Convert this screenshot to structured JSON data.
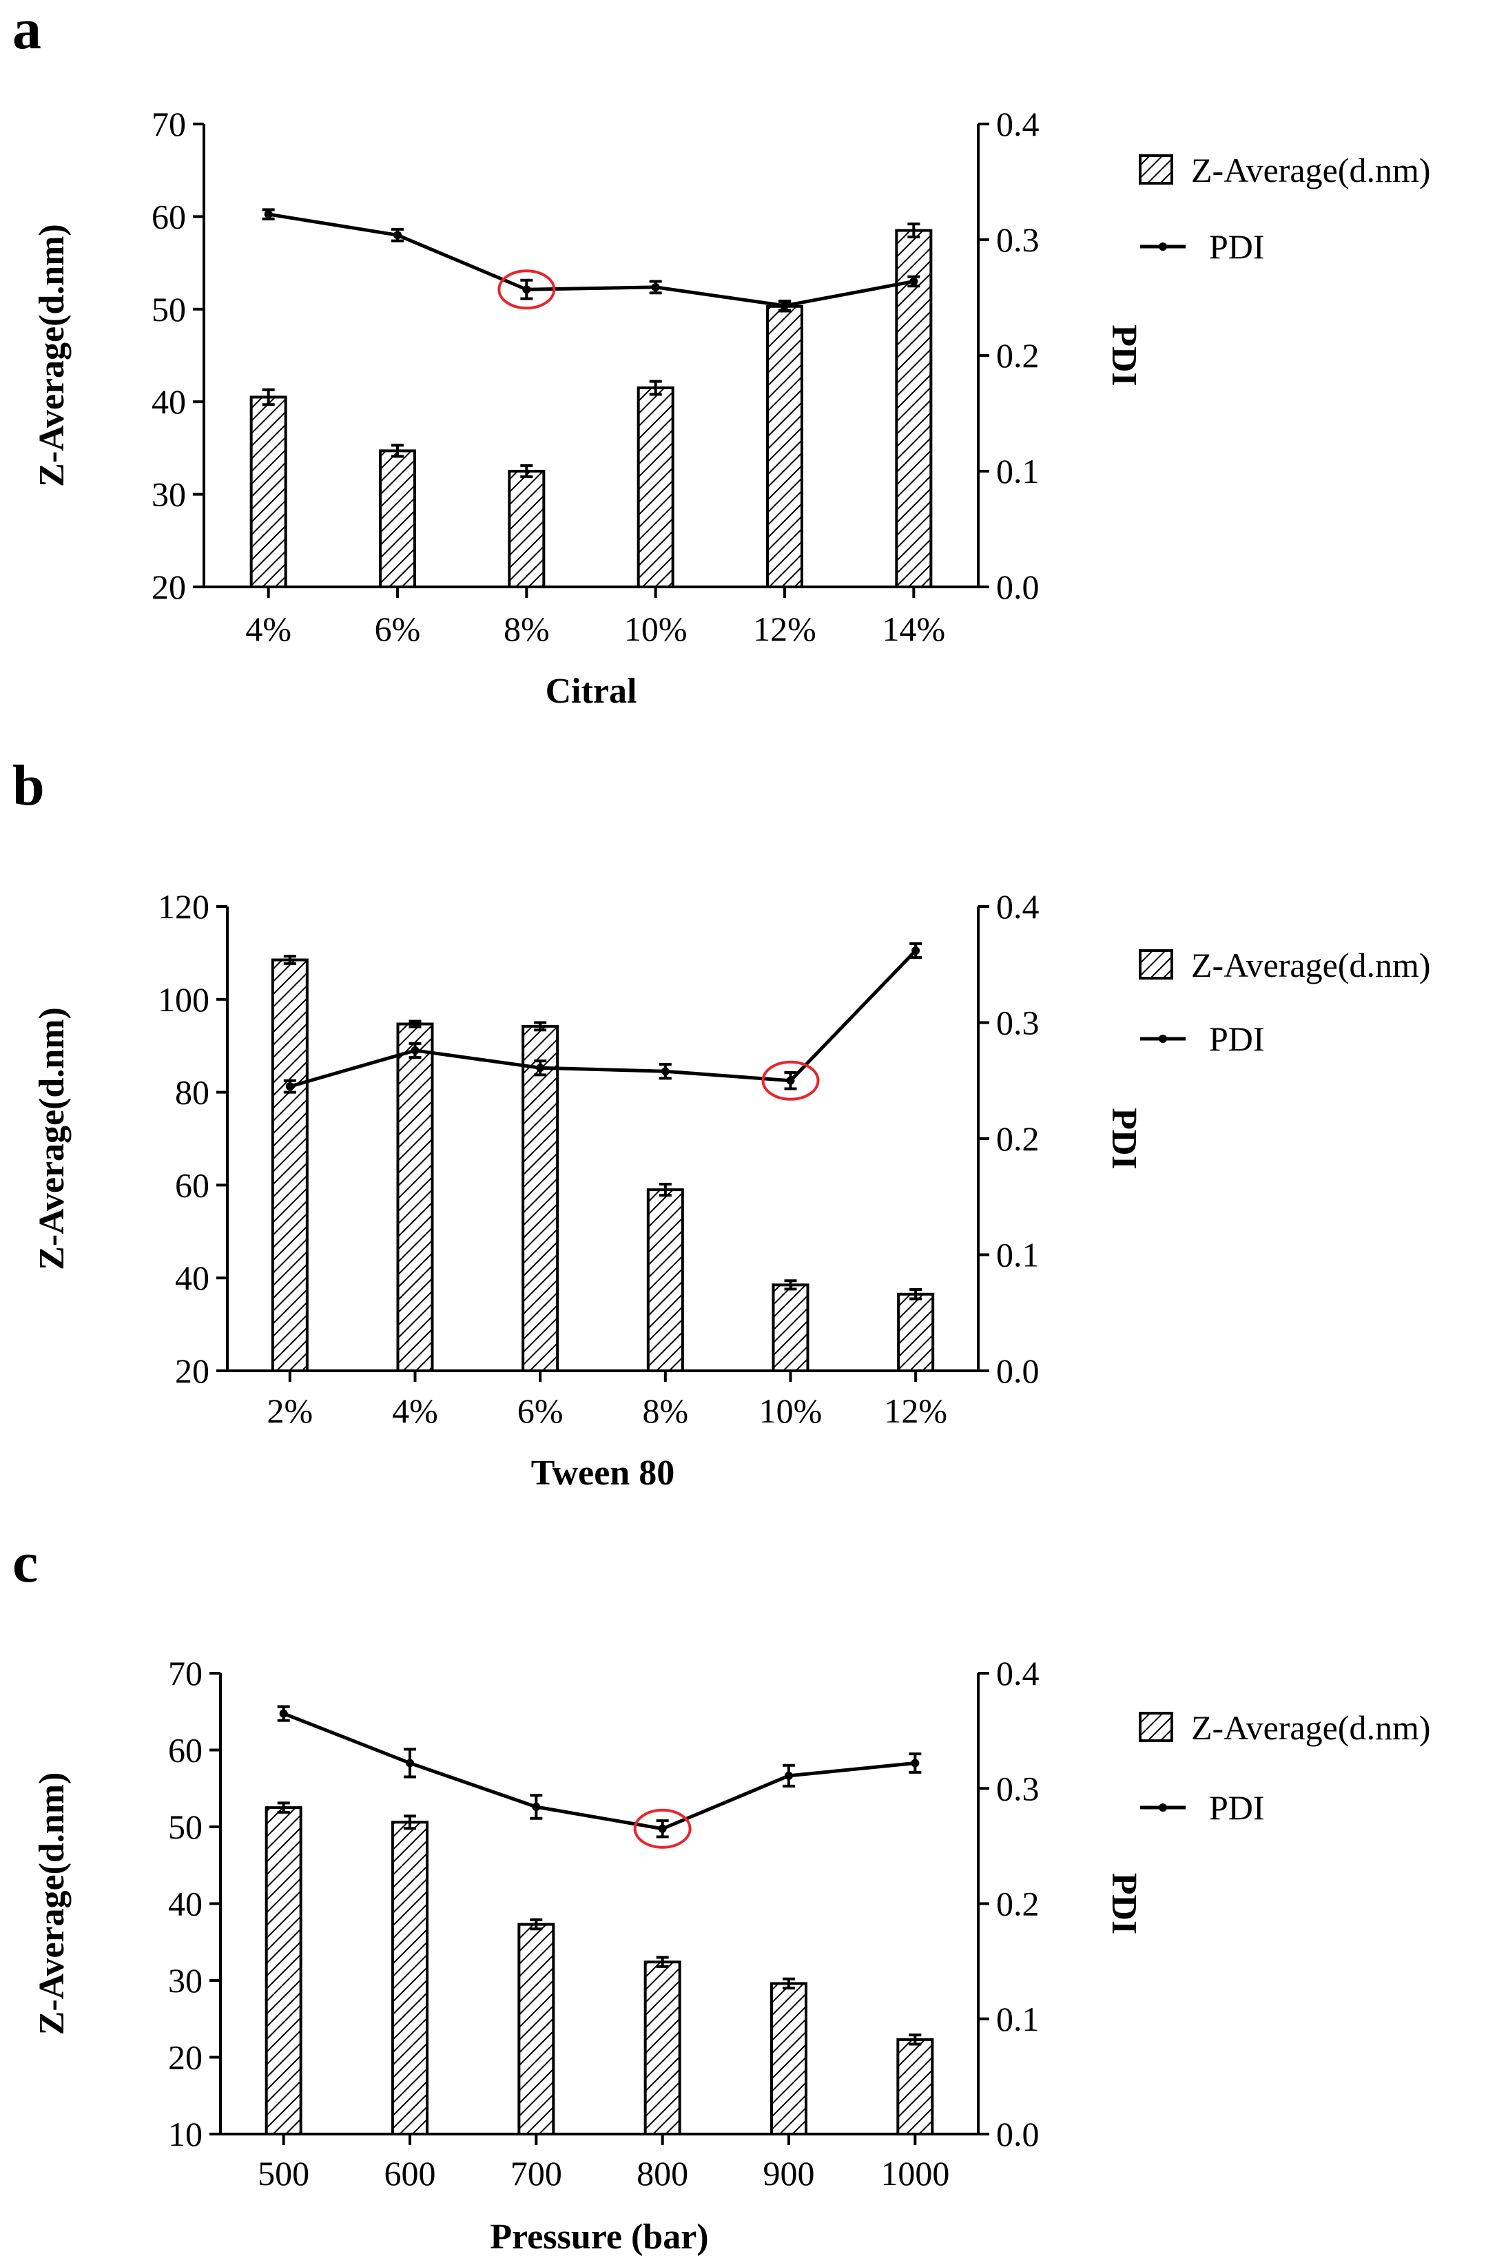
{
  "figure": {
    "panels": [
      "a",
      "b",
      "c"
    ]
  },
  "chart_data": [
    {
      "type": "bar",
      "panel": "a",
      "categories": [
        "4%",
        "6%",
        "8%",
        "10%",
        "12%",
        "14%"
      ],
      "xlabel": "Citral",
      "ylabel": "Z-Average(d.nm)",
      "y2label": "PDI",
      "ylim": [
        20,
        70
      ],
      "yticks": [
        20,
        30,
        40,
        50,
        60,
        70
      ],
      "y2lim": [
        0,
        0.4
      ],
      "y2ticks": [
        "0.0",
        "0.1",
        "0.2",
        "0.3",
        "0.4"
      ],
      "legend_position": "right",
      "series": [
        {
          "name": "Z-Average(d.nm)",
          "kind": "bar",
          "axis": "left",
          "values": [
            40.5,
            34.7,
            32.5,
            41.5,
            50.3,
            58.5
          ],
          "errors": [
            0.8,
            0.6,
            0.6,
            0.7,
            0.5,
            0.7
          ]
        },
        {
          "name": "PDI",
          "kind": "line",
          "axis": "right",
          "values": [
            0.322,
            0.304,
            0.257,
            0.259,
            0.243,
            0.264
          ],
          "errors": [
            0.004,
            0.005,
            0.008,
            0.005,
            0.004,
            0.004
          ]
        }
      ],
      "highlight": {
        "index": 2,
        "series": "PDI",
        "color": "#e8262b"
      }
    },
    {
      "type": "bar",
      "panel": "b",
      "categories": [
        "2%",
        "4%",
        "6%",
        "8%",
        "10%",
        "12%"
      ],
      "xlabel": "Tween 80",
      "ylabel": "Z-Average(d.nm)",
      "y2label": "PDI",
      "ylim": [
        20,
        120
      ],
      "yticks": [
        20,
        40,
        60,
        80,
        100,
        120
      ],
      "y2lim": [
        0,
        0.4
      ],
      "y2ticks": [
        "0.0",
        "0.1",
        "0.2",
        "0.3",
        "0.4"
      ],
      "legend_position": "right",
      "series": [
        {
          "name": "Z-Average(d.nm)",
          "kind": "bar",
          "axis": "left",
          "values": [
            108.5,
            94.7,
            94.2,
            59.0,
            38.5,
            36.5
          ],
          "errors": [
            0.8,
            0.6,
            0.8,
            1.2,
            0.9,
            1.0
          ]
        },
        {
          "name": "PDI",
          "kind": "line",
          "axis": "right",
          "values": [
            0.245,
            0.276,
            0.261,
            0.258,
            0.25,
            0.362
          ],
          "errors": [
            0.005,
            0.006,
            0.006,
            0.006,
            0.007,
            0.006
          ]
        }
      ],
      "highlight": {
        "index": 4,
        "series": "PDI",
        "color": "#e8262b"
      }
    },
    {
      "type": "bar",
      "panel": "c",
      "categories": [
        "500",
        "600",
        "700",
        "800",
        "900",
        "1000"
      ],
      "xlabel": "Pressure (bar)",
      "ylabel": "Z-Average(d.nm)",
      "y2label": "PDI",
      "ylim": [
        10,
        70
      ],
      "yticks": [
        10,
        20,
        30,
        40,
        50,
        60,
        70
      ],
      "y2lim": [
        0,
        0.4
      ],
      "y2ticks": [
        "0.0",
        "0.1",
        "0.2",
        "0.3",
        "0.4"
      ],
      "legend_position": "right",
      "series": [
        {
          "name": "Z-Average(d.nm)",
          "kind": "bar",
          "axis": "left",
          "values": [
            52.5,
            50.6,
            37.3,
            32.4,
            29.6,
            22.3
          ],
          "errors": [
            0.6,
            0.8,
            0.6,
            0.6,
            0.6,
            0.6
          ]
        },
        {
          "name": "PDI",
          "kind": "line",
          "axis": "right",
          "values": [
            0.365,
            0.322,
            0.284,
            0.265,
            0.311,
            0.322
          ],
          "errors": [
            0.006,
            0.012,
            0.01,
            0.007,
            0.009,
            0.008
          ]
        }
      ],
      "highlight": {
        "index": 3,
        "series": "PDI",
        "color": "#e8262b"
      }
    }
  ]
}
